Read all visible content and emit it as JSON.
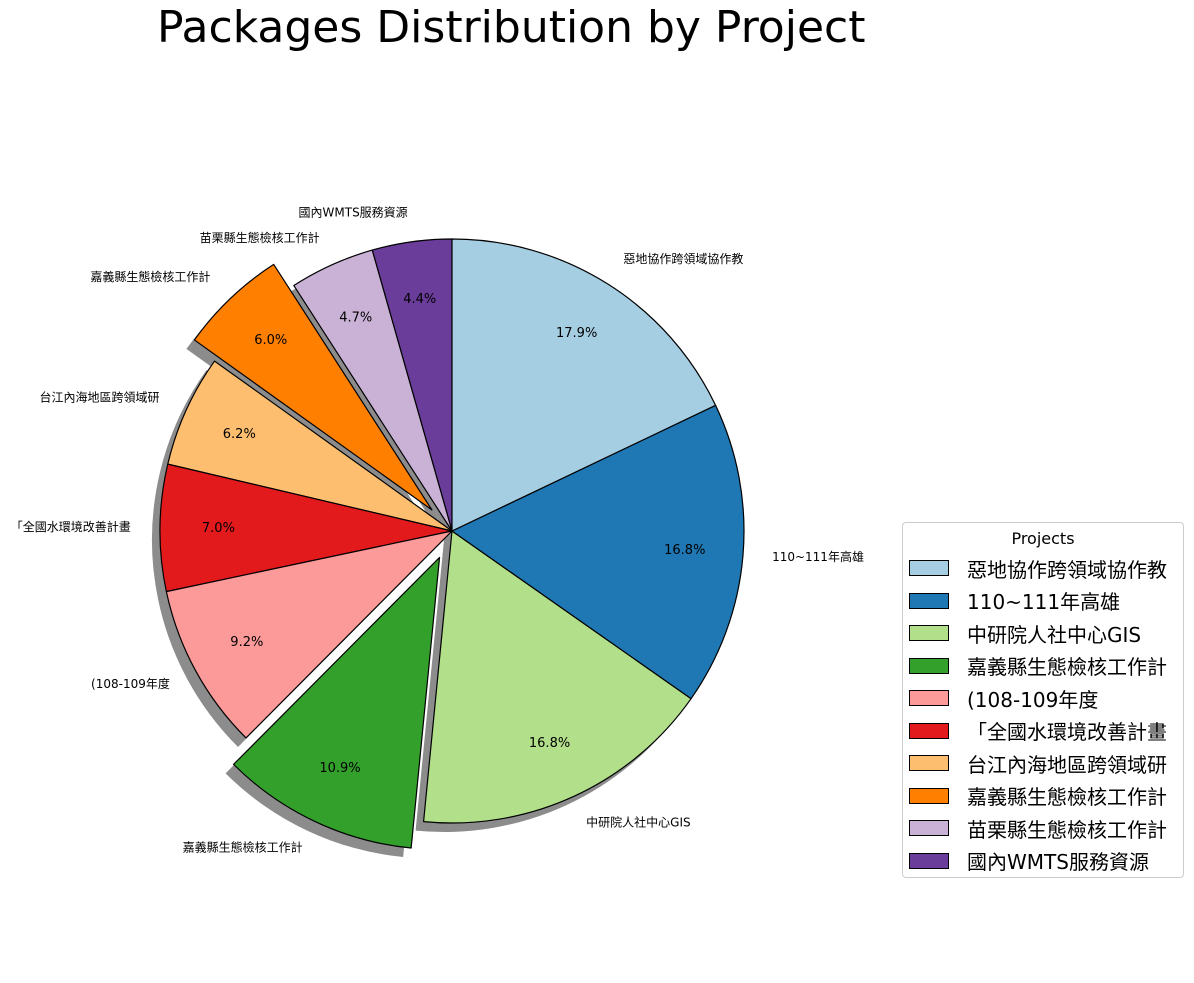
{
  "chart_data": {
    "type": "pie",
    "title": "Packages Distribution by Project",
    "legend_title": "Projects",
    "legend_placement": "right",
    "start_angle_deg": 90,
    "direction": "counterclockwise",
    "shadow": true,
    "slices": [
      {
        "label": "國內WMTS服務資源",
        "value": 4.4,
        "pct_text": "4.4%",
        "color": "#6a3d9a",
        "explode": false
      },
      {
        "label": "苗栗縣生態檢核工作計",
        "value": 4.7,
        "pct_text": "4.7%",
        "color": "#cab2d6",
        "explode": false
      },
      {
        "label": "嘉義縣生態檢核工作計",
        "value": 6.0,
        "pct_text": "6.0%",
        "color": "#ff7f00",
        "explode": true
      },
      {
        "label": "台江內海地區跨領域研",
        "value": 6.2,
        "pct_text": "6.2%",
        "color": "#fdbf6f",
        "explode": false
      },
      {
        "label": "「全國水環境改善計畫",
        "value": 7.0,
        "pct_text": "7.0%",
        "color": "#e31a1c",
        "explode": false
      },
      {
        "label": "(108-109年度",
        "value": 9.2,
        "pct_text": "9.2%",
        "color": "#fb9a99",
        "explode": false
      },
      {
        "label": "嘉義縣生態檢核工作計",
        "value": 10.9,
        "pct_text": "10.9%",
        "color": "#33a02c",
        "explode": true
      },
      {
        "label": "中研院人社中心GIS",
        "value": 16.8,
        "pct_text": "16.8%",
        "color": "#b2df8a",
        "explode": false
      },
      {
        "label": "110~111年高雄",
        "value": 16.8,
        "pct_text": "16.8%",
        "color": "#1f78b4",
        "explode": false
      },
      {
        "label": "惡地協作跨領域協作教",
        "value": 17.9,
        "pct_text": "17.9%",
        "color": "#a6cee3",
        "explode": false
      }
    ]
  }
}
